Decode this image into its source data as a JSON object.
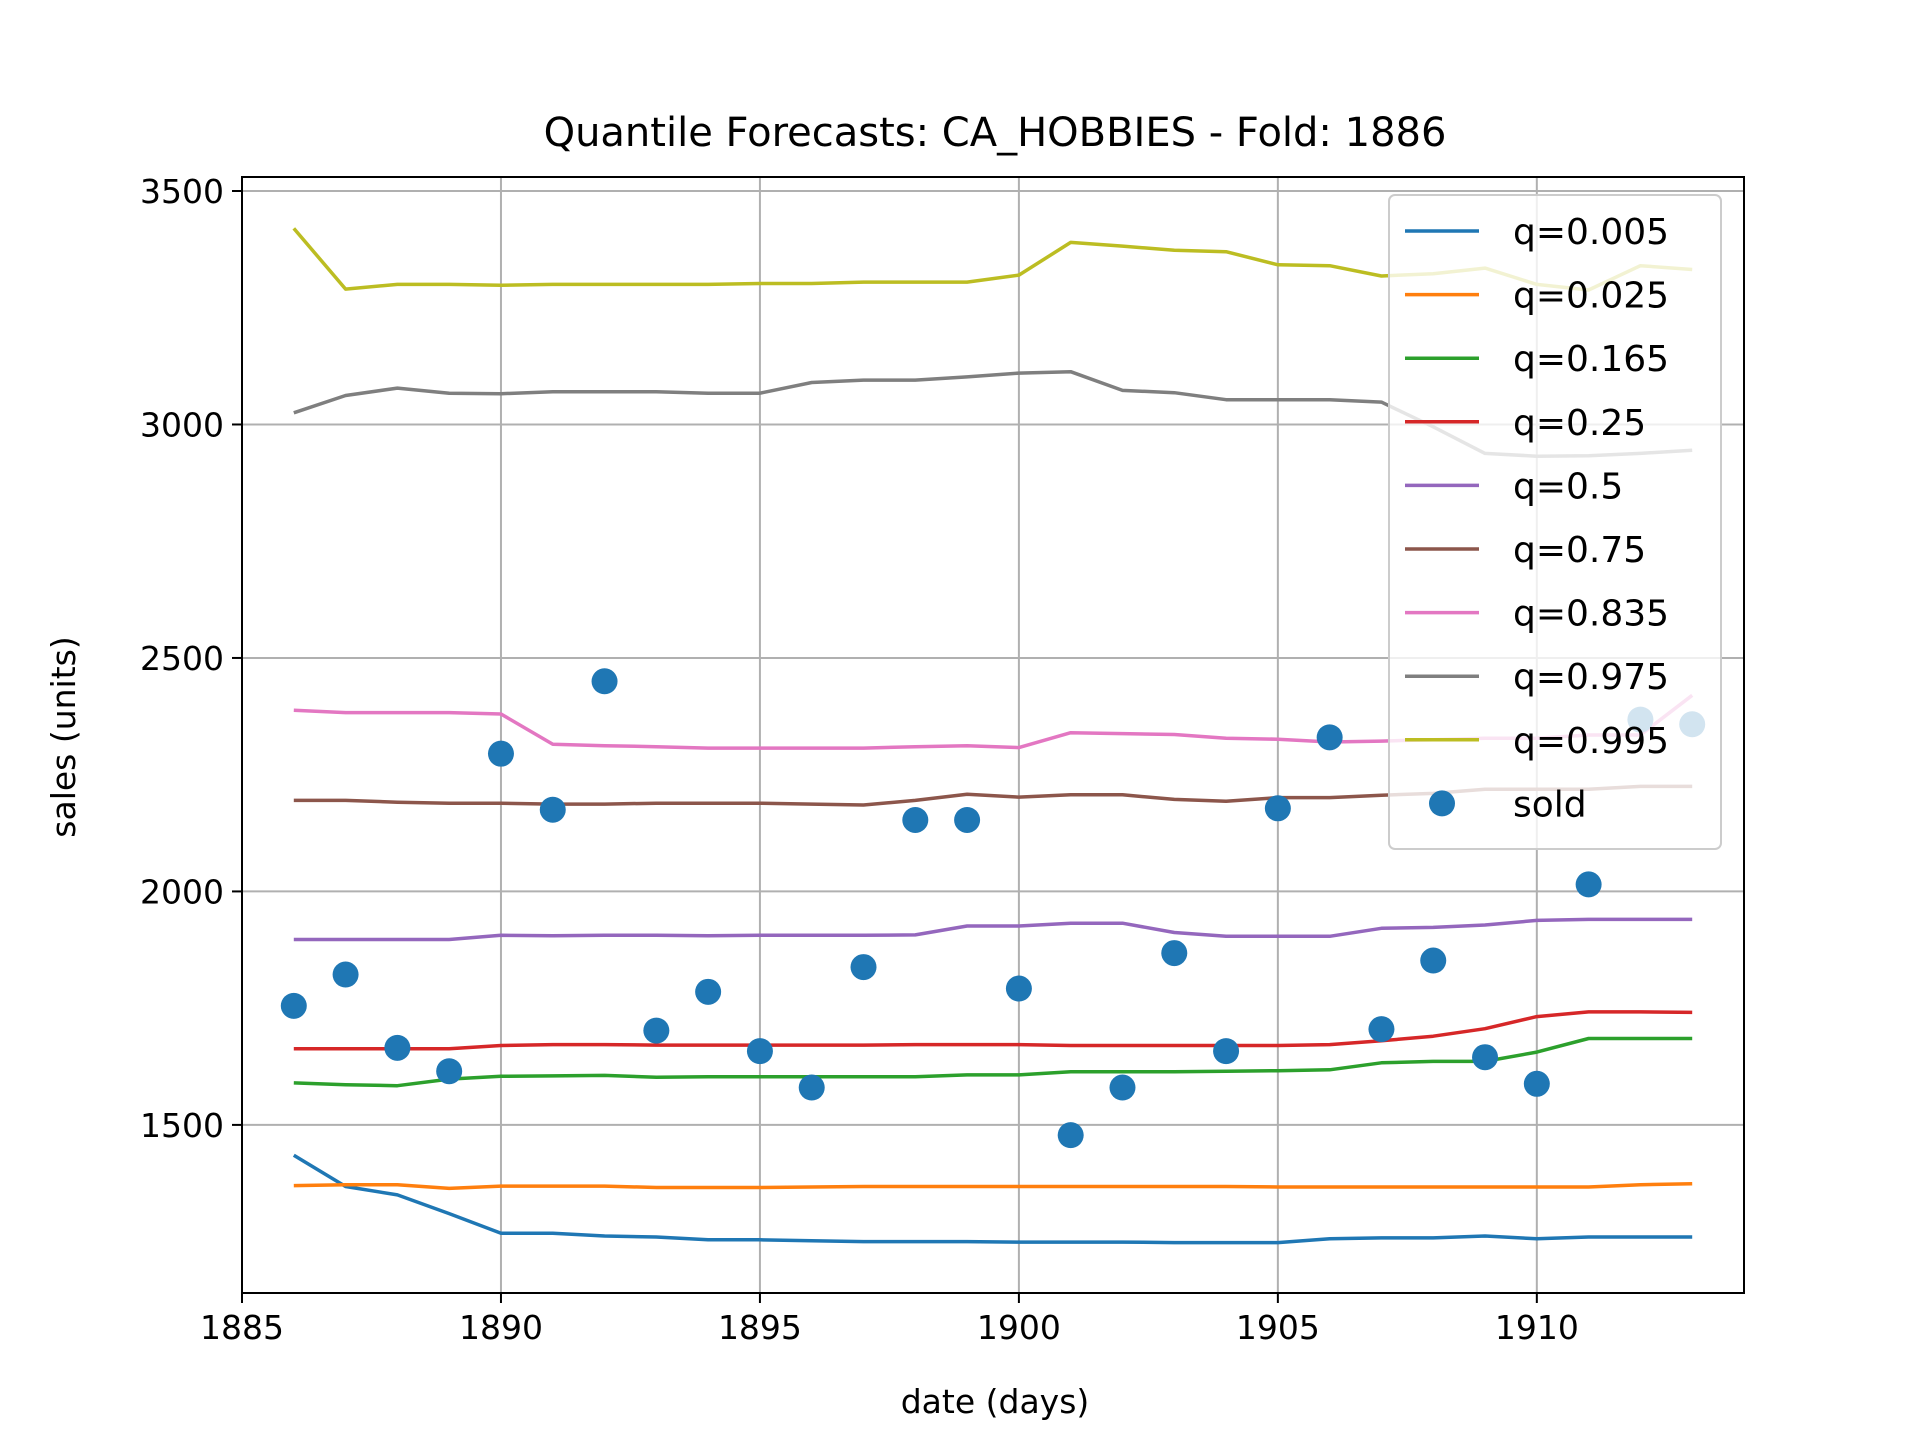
{
  "chart_data": {
    "type": "line",
    "title": "Quantile Forecasts: CA_HOBBIES - Fold: 1886",
    "xlabel": "date (days)",
    "ylabel": "sales (units)",
    "xlim": [
      1885,
      1914
    ],
    "ylim": [
      1140,
      3530
    ],
    "x_ticks": [
      1885,
      1890,
      1895,
      1900,
      1905,
      1910
    ],
    "y_ticks": [
      1500,
      2000,
      2500,
      3000,
      3500
    ],
    "grid": true,
    "legend_position": "upper right",
    "x": [
      1886,
      1887,
      1888,
      1889,
      1890,
      1891,
      1892,
      1893,
      1894,
      1895,
      1896,
      1897,
      1898,
      1899,
      1900,
      1901,
      1902,
      1903,
      1904,
      1905,
      1906,
      1907,
      1908,
      1909,
      1910,
      1911,
      1912,
      1913
    ],
    "series": [
      {
        "name": "q=0.005",
        "color": "#1f77b4",
        "values": [
          1435,
          1368,
          1350,
          1310,
          1268,
          1268,
          1262,
          1260,
          1254,
          1254,
          1252,
          1250,
          1250,
          1250,
          1249,
          1249,
          1249,
          1248,
          1248,
          1248,
          1256,
          1258,
          1258,
          1262,
          1256,
          1260,
          1260,
          1260
        ]
      },
      {
        "name": "q=0.025",
        "color": "#ff7f0e",
        "values": [
          1370,
          1372,
          1372,
          1364,
          1369,
          1369,
          1369,
          1366,
          1366,
          1366,
          1367,
          1368,
          1368,
          1368,
          1368,
          1368,
          1368,
          1368,
          1368,
          1367,
          1367,
          1367,
          1367,
          1367,
          1367,
          1367,
          1372,
          1374
        ]
      },
      {
        "name": "q=0.165",
        "color": "#2ca02c",
        "values": [
          1590,
          1586,
          1584,
          1598,
          1604,
          1605,
          1606,
          1602,
          1603,
          1603,
          1603,
          1603,
          1603,
          1607,
          1607,
          1614,
          1614,
          1614,
          1615,
          1616,
          1618,
          1633,
          1636,
          1636,
          1656,
          1685,
          1685,
          1685
        ]
      },
      {
        "name": "q=0.25",
        "color": "#d62728",
        "values": [
          1663,
          1663,
          1663,
          1663,
          1670,
          1672,
          1672,
          1671,
          1671,
          1671,
          1671,
          1671,
          1672,
          1672,
          1672,
          1670,
          1670,
          1670,
          1670,
          1670,
          1672,
          1680,
          1690,
          1706,
          1732,
          1742,
          1742,
          1741
        ]
      },
      {
        "name": "q=0.5",
        "color": "#9467bd",
        "values": [
          1897,
          1897,
          1897,
          1897,
          1906,
          1905,
          1906,
          1906,
          1905,
          1906,
          1906,
          1906,
          1907,
          1926,
          1926,
          1932,
          1932,
          1912,
          1904,
          1904,
          1904,
          1921,
          1923,
          1928,
          1938,
          1940,
          1940,
          1940
        ]
      },
      {
        "name": "q=0.75",
        "color": "#8c564b",
        "values": [
          2195,
          2195,
          2191,
          2189,
          2189,
          2187,
          2187,
          2189,
          2189,
          2189,
          2187,
          2185,
          2195,
          2208,
          2202,
          2207,
          2207,
          2197,
          2193,
          2201,
          2201,
          2206,
          2210,
          2219,
          2219,
          2219,
          2225,
          2225
        ]
      },
      {
        "name": "q=0.835",
        "color": "#e377c2",
        "values": [
          2388,
          2383,
          2383,
          2383,
          2380,
          2315,
          2312,
          2310,
          2307,
          2307,
          2307,
          2307,
          2310,
          2312,
          2308,
          2340,
          2338,
          2336,
          2328,
          2326,
          2320,
          2322,
          2325,
          2328,
          2328,
          2335,
          2335,
          2420
        ]
      },
      {
        "name": "q=0.975",
        "color": "#7f7f7f",
        "values": [
          3025,
          3062,
          3078,
          3067,
          3066,
          3070,
          3070,
          3070,
          3067,
          3067,
          3090,
          3095,
          3095,
          3102,
          3110,
          3113,
          3073,
          3068,
          3053,
          3053,
          3053,
          3048,
          2995,
          2938,
          2932,
          2933,
          2938,
          2945
        ]
      },
      {
        "name": "q=0.995",
        "color": "#bcbd22",
        "values": [
          3420,
          3290,
          3300,
          3300,
          3298,
          3300,
          3300,
          3300,
          3300,
          3302,
          3302,
          3305,
          3305,
          3305,
          3320,
          3390,
          3382,
          3373,
          3370,
          3342,
          3340,
          3318,
          3323,
          3335,
          3300,
          3288,
          3340,
          3332
        ]
      }
    ],
    "scatter": {
      "name": "sold",
      "color": "#1f77b4",
      "values": [
        1755,
        1822,
        1665,
        1615,
        2295,
        2175,
        2450,
        1702,
        1785,
        1658,
        1580,
        1838,
        2153,
        2153,
        1792,
        1478,
        1580,
        1868,
        1658,
        2178,
        2330,
        1705,
        1852,
        1645,
        1588,
        2015,
        2368,
        2358
      ]
    }
  }
}
